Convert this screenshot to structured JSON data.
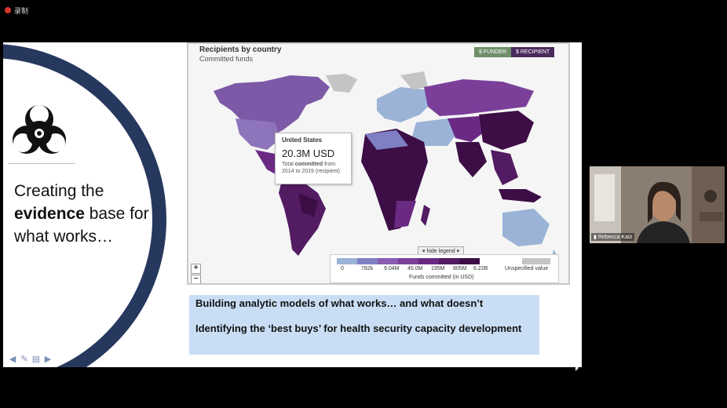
{
  "recording": {
    "label": "录制"
  },
  "slide": {
    "title_prefix": "Creating the",
    "title_bold": "evidence",
    "title_suffix": " base for what works…",
    "text_line1": "Building analytic models of what works… and what doesn’t",
    "text_line2": "Identifying the ‘best buys’ for health security capacity development"
  },
  "map": {
    "title": "Recipients by country",
    "subtitle": "Committed funds",
    "toggle_funder": "$ FUNDER",
    "toggle_recipient": "$ RECIPIENT",
    "tooltip_country": "United States",
    "tooltip_value": "20.3M USD",
    "tooltip_desc_pre": "Total ",
    "tooltip_desc_bold": "committed",
    "tooltip_desc_post": " from 2014 to 2019 (recipient)",
    "hide_legend": "▾ hide legend ▾",
    "legend_ticks": [
      "0",
      "782k",
      "9.04M",
      "45.0M",
      "195M",
      "805M",
      "6.22B"
    ],
    "legend_unspecified": "Unspecified value",
    "legend_caption": "Funds committed (in USD)",
    "legend_colors": [
      "#9ab3d6",
      "#7f7fc3",
      "#8a5bb3",
      "#7b3f9a",
      "#6a2a84",
      "#521b62",
      "#3d0d46"
    ],
    "zoom_in": "+",
    "zoom_out": "−"
  },
  "video": {
    "name": "Rebecca Katz"
  },
  "colors": {
    "ring": "#27385f",
    "textbox": "#c9def5",
    "map_bg": "#f5f5f5"
  }
}
